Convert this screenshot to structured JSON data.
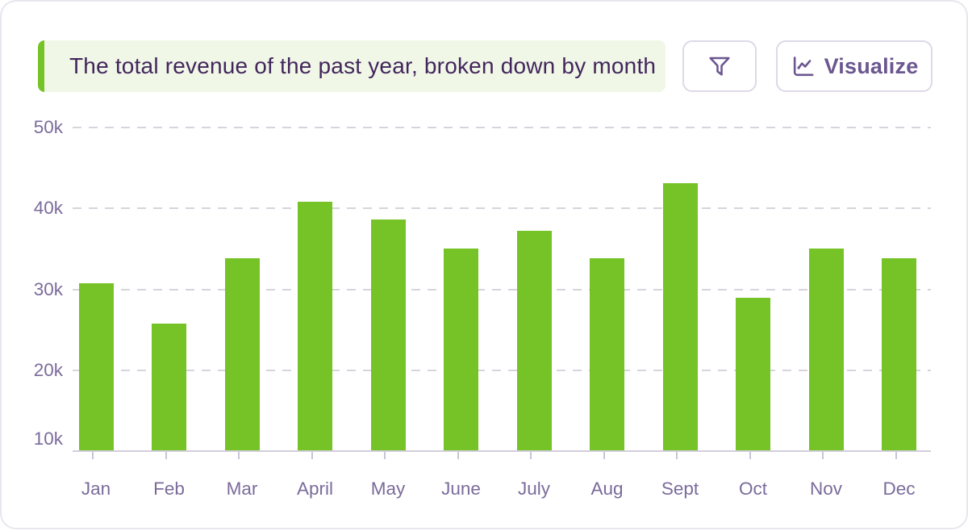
{
  "header": {
    "query_label": "The total revenue of the past year, broken down by month",
    "filter_button": {
      "icon": "funnel-icon"
    },
    "visualize_button": {
      "label": "Visualize",
      "icon": "chart-line-icon"
    }
  },
  "colors": {
    "bar_green": "#76c327",
    "banner_bg": "#f0f7e7",
    "banner_accent": "#76c327",
    "query_text": "#42265c",
    "button_border": "#ded9e5",
    "button_purple": "#6b5690",
    "axis_label": "#7b6b9b",
    "gridline": "#d8d4de",
    "baseline": "#d2cedb",
    "card_border": "#e9e6ee"
  },
  "chart_data": {
    "type": "bar",
    "title": "The total revenue of the past year, broken down by month",
    "categories": [
      "Jan",
      "Feb",
      "Mar",
      "April",
      "May",
      "June",
      "July",
      "Aug",
      "Sept",
      "Oct",
      "Nov",
      "Dec"
    ],
    "values": [
      30.7,
      25.8,
      33.8,
      40.8,
      38.6,
      35.0,
      37.2,
      33.8,
      43.1,
      29.0,
      35.0,
      33.8
    ],
    "values_unit": "thousands",
    "xlabel": "",
    "ylabel": "",
    "y_ticks": [
      {
        "label": "50k",
        "value": 50
      },
      {
        "label": "40k",
        "value": 40
      },
      {
        "label": "30k",
        "value": 30
      },
      {
        "label": "20k",
        "value": 20
      },
      {
        "label": "10k",
        "value": 10
      }
    ],
    "ylim": [
      10,
      50
    ],
    "grid": "dashed-horizontal",
    "legend": "none",
    "bar_color": "#76c327"
  }
}
